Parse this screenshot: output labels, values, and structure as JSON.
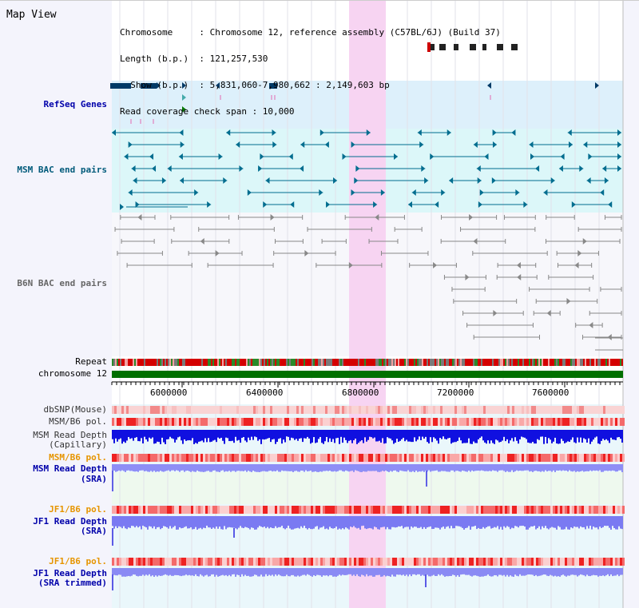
{
  "page": {
    "title": "Map View"
  },
  "header": {
    "lines": [
      "Chromosome     : Chromosome 12, reference assembly (C57BL/6J) (Build 37)",
      "Length (b.p.)  : 121,257,530",
      "  Show (b.p.)  : 5,831,060-7,980,662 : 2,149,603 bp",
      "Read coverage check span : 10,000"
    ]
  },
  "tracks": {
    "refseq": "RefSeq Genes",
    "msm_bac": "MSM BAC end pairs",
    "b6n_bac": "B6N BAC end pairs",
    "repeat": "Repeat",
    "chromosome": "chromosome 12",
    "dbsnp": "dbSNP(Mouse)",
    "msm_b6_pol_1": "MSM/B6 pol.",
    "msm_depth_cap_1": "MSM Read Depth",
    "msm_depth_cap_2": "(Capillary)",
    "msm_b6_pol_2": "MSM/B6 pol.",
    "msm_depth_sra_1": "MSM Read Depth",
    "msm_depth_sra_2": "(SRA)",
    "jf1_b6_pol_1": "JF1/B6 pol.",
    "jf1_depth_sra_1": "JF1 Read Depth",
    "jf1_depth_sra_2": "(SRA)",
    "jf1_b6_pol_2": "JF1/B6 pol.",
    "jf1_depth_trim_1": "JF1 Read Depth",
    "jf1_depth_trim_2": "(SRA trimmed)"
  },
  "axis": {
    "ticks": [
      "6000000",
      "6400000",
      "6800000",
      "7200000",
      "7600000"
    ]
  },
  "colors": {
    "highlight": "#f7d4f2",
    "refseq_bg": "#ddf0fb",
    "msm_bg": "#dcf7f9",
    "chrom": "#007000",
    "gene": "#003a66",
    "teal": "#006d8f",
    "gray": "#888888"
  }
}
